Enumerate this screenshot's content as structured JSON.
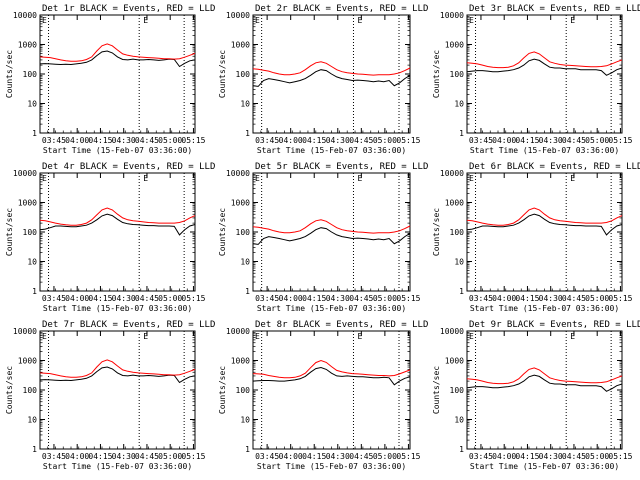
{
  "chart_data": [
    {
      "type": "line",
      "title": "Det 1r BLACK = Events, RED = LLD",
      "events_level": "high",
      "series": [
        {
          "name": "Events",
          "color": "#000000",
          "values": [
            220,
            225,
            220,
            215,
            210,
            215,
            210,
            220,
            230,
            250,
            300,
            420,
            560,
            600,
            520,
            380,
            310,
            300,
            320,
            300,
            300,
            310,
            300,
            290,
            300,
            320,
            310,
            180,
            230,
            280,
            300
          ]
        },
        {
          "name": "LLD",
          "color": "#ff0000",
          "values": [
            380,
            370,
            360,
            330,
            300,
            280,
            270,
            270,
            280,
            310,
            380,
            600,
            900,
            1050,
            900,
            650,
            480,
            430,
            400,
            380,
            370,
            360,
            350,
            340,
            330,
            330,
            320,
            330,
            370,
            430,
            500
          ]
        }
      ]
    },
    {
      "type": "line",
      "title": "Det 2r BLACK = Events, RED = LLD",
      "events_level": "low",
      "series": [
        {
          "name": "Events",
          "color": "#000000",
          "values": [
            40,
            38,
            60,
            70,
            65,
            60,
            55,
            50,
            55,
            60,
            70,
            90,
            120,
            140,
            130,
            100,
            80,
            70,
            65,
            60,
            62,
            60,
            58,
            55,
            58,
            55,
            60,
            40,
            50,
            70,
            90
          ]
        },
        {
          "name": "LLD",
          "color": "#ff0000",
          "values": [
            150,
            145,
            135,
            125,
            110,
            100,
            95,
            95,
            100,
            110,
            140,
            190,
            240,
            260,
            230,
            180,
            140,
            120,
            110,
            105,
            100,
            98,
            95,
            92,
            95,
            95,
            95,
            100,
            110,
            130,
            160
          ]
        }
      ]
    },
    {
      "type": "line",
      "title": "Det 3r BLACK = Events, RED = LLD",
      "events_level": "high",
      "series": [
        {
          "name": "Events",
          "color": "#000000",
          "values": [
            120,
            125,
            130,
            130,
            125,
            120,
            120,
            125,
            130,
            140,
            160,
            200,
            280,
            320,
            290,
            220,
            170,
            160,
            160,
            150,
            150,
            150,
            140,
            140,
            140,
            140,
            130,
            90,
            110,
            140,
            160
          ]
        },
        {
          "name": "LLD",
          "color": "#ff0000",
          "values": [
            240,
            230,
            220,
            200,
            180,
            170,
            165,
            165,
            170,
            190,
            240,
            350,
            500,
            560,
            480,
            350,
            260,
            230,
            210,
            200,
            195,
            190,
            185,
            180,
            175,
            175,
            180,
            190,
            220,
            260,
            300
          ]
        }
      ]
    },
    {
      "type": "line",
      "title": "Det 4r BLACK = Events, RED = LLD",
      "events_level": "high",
      "series": [
        {
          "name": "Events",
          "color": "#000000",
          "values": [
            120,
            125,
            140,
            160,
            160,
            155,
            150,
            150,
            160,
            170,
            200,
            260,
            350,
            400,
            360,
            270,
            210,
            190,
            180,
            175,
            170,
            165,
            165,
            160,
            160,
            160,
            155,
            80,
            120,
            160,
            180
          ]
        },
        {
          "name": "LLD",
          "color": "#ff0000",
          "values": [
            250,
            240,
            220,
            200,
            185,
            175,
            170,
            170,
            180,
            200,
            260,
            380,
            560,
            650,
            560,
            400,
            300,
            260,
            240,
            230,
            220,
            210,
            205,
            200,
            200,
            200,
            200,
            210,
            240,
            300,
            360
          ]
        }
      ]
    },
    {
      "type": "line",
      "title": "Det 5r BLACK = Events, RED = LLD",
      "events_level": "low",
      "series": [
        {
          "name": "Events",
          "color": "#000000",
          "values": [
            40,
            38,
            60,
            70,
            65,
            60,
            55,
            50,
            55,
            60,
            70,
            90,
            120,
            140,
            130,
            100,
            80,
            70,
            65,
            60,
            62,
            60,
            58,
            55,
            58,
            55,
            60,
            40,
            50,
            70,
            90
          ]
        },
        {
          "name": "LLD",
          "color": "#ff0000",
          "values": [
            150,
            145,
            135,
            125,
            110,
            100,
            95,
            95,
            100,
            110,
            140,
            190,
            240,
            260,
            230,
            180,
            140,
            120,
            110,
            105,
            100,
            98,
            95,
            92,
            95,
            95,
            95,
            100,
            110,
            130,
            160
          ]
        }
      ]
    },
    {
      "type": "line",
      "title": "Det 6r BLACK = Events, RED = LLD",
      "events_level": "high",
      "series": [
        {
          "name": "Events",
          "color": "#000000",
          "values": [
            120,
            125,
            140,
            160,
            160,
            155,
            150,
            150,
            160,
            170,
            200,
            260,
            350,
            400,
            360,
            270,
            210,
            190,
            180,
            175,
            170,
            165,
            165,
            160,
            160,
            160,
            155,
            80,
            120,
            160,
            180
          ]
        },
        {
          "name": "LLD",
          "color": "#ff0000",
          "values": [
            250,
            240,
            220,
            200,
            185,
            175,
            170,
            170,
            180,
            200,
            260,
            380,
            560,
            650,
            560,
            400,
            300,
            260,
            240,
            230,
            220,
            210,
            205,
            200,
            200,
            200,
            200,
            210,
            240,
            300,
            360
          ]
        }
      ]
    },
    {
      "type": "line",
      "title": "Det 7r BLACK = Events, RED = LLD",
      "events_level": "high",
      "series": [
        {
          "name": "Events",
          "color": "#000000",
          "values": [
            220,
            225,
            220,
            215,
            210,
            215,
            210,
            220,
            230,
            250,
            300,
            420,
            560,
            600,
            520,
            380,
            310,
            300,
            320,
            300,
            300,
            310,
            300,
            290,
            300,
            320,
            310,
            180,
            230,
            280,
            300
          ]
        },
        {
          "name": "LLD",
          "color": "#ff0000",
          "values": [
            380,
            370,
            360,
            330,
            300,
            280,
            270,
            270,
            280,
            310,
            380,
            600,
            900,
            1050,
            900,
            650,
            480,
            430,
            400,
            380,
            370,
            360,
            350,
            340,
            330,
            330,
            320,
            330,
            370,
            430,
            500
          ]
        }
      ]
    },
    {
      "type": "line",
      "title": "Det 8r BLACK = Events, RED = LLD",
      "events_level": "high",
      "series": [
        {
          "name": "Events",
          "color": "#000000",
          "values": [
            200,
            205,
            210,
            210,
            205,
            200,
            200,
            210,
            220,
            240,
            290,
            400,
            530,
            580,
            500,
            370,
            300,
            290,
            300,
            290,
            280,
            280,
            270,
            260,
            260,
            270,
            260,
            150,
            200,
            250,
            280
          ]
        },
        {
          "name": "LLD",
          "color": "#ff0000",
          "values": [
            360,
            350,
            340,
            310,
            290,
            270,
            260,
            260,
            270,
            300,
            370,
            570,
            850,
            1000,
            860,
            620,
            460,
            410,
            380,
            360,
            350,
            340,
            330,
            320,
            310,
            310,
            300,
            310,
            350,
            410,
            480
          ]
        }
      ]
    },
    {
      "type": "line",
      "title": "Det 9r BLACK = Events, RED = LLD",
      "events_level": "high",
      "series": [
        {
          "name": "Events",
          "color": "#000000",
          "values": [
            120,
            125,
            130,
            130,
            125,
            120,
            120,
            125,
            130,
            140,
            160,
            200,
            280,
            320,
            290,
            220,
            170,
            160,
            160,
            150,
            150,
            150,
            140,
            140,
            140,
            140,
            130,
            90,
            110,
            140,
            160
          ]
        },
        {
          "name": "LLD",
          "color": "#ff0000",
          "values": [
            240,
            230,
            220,
            200,
            180,
            170,
            165,
            165,
            170,
            190,
            240,
            350,
            500,
            560,
            480,
            350,
            260,
            230,
            210,
            200,
            195,
            190,
            185,
            180,
            175,
            175,
            180,
            190,
            220,
            260,
            300
          ]
        }
      ]
    }
  ],
  "shared": {
    "xlabel": "Start Time (15-Feb-07 03:36:00)",
    "ylabel": "Counts/sec",
    "x_tick_labels": [
      "03:45",
      "04:00",
      "04:15",
      "04:30",
      "04:45",
      "05:00",
      "05:15"
    ],
    "y_tick_labels": [
      "1",
      "10",
      "100",
      "1000",
      "10000"
    ],
    "y_scale": "log",
    "ylim": [
      1,
      10000
    ],
    "xlim_minutes": [
      0,
      100
    ],
    "dotted_lines_minutes": [
      5.5,
      64,
      93
    ],
    "marker_label": "E",
    "grid": false
  }
}
